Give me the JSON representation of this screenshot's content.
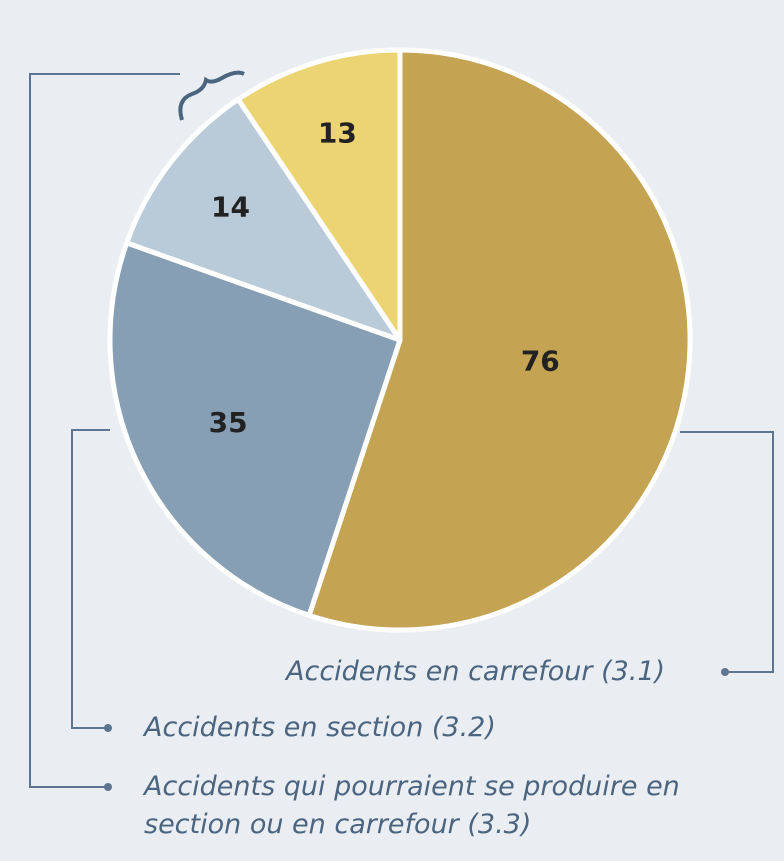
{
  "chart_data": {
    "type": "pie",
    "categories": [
      "Accidents en carrefour (3.1)",
      "Accidents en section (3.2)",
      "Accidents qui pourraient se produire en section ou en carrefour (3.3)",
      null
    ],
    "values": [
      76,
      35,
      14,
      13
    ],
    "colors": [
      "#c4a352",
      "#879fb4",
      "#b9cad8",
      "#ecd473"
    ]
  }
}
